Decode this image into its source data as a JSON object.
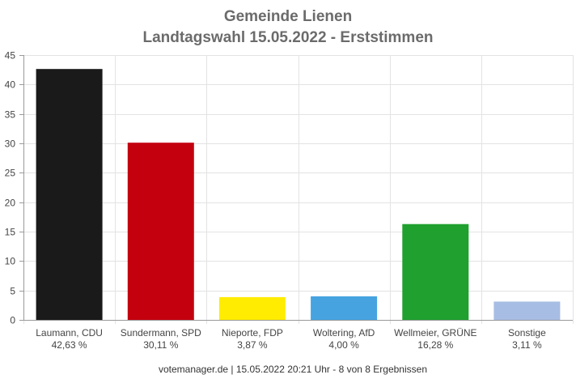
{
  "colors": {
    "grid": "#e3e3e3",
    "axis": "#9a9a9a",
    "title": "#6b6b6b"
  },
  "chart_data": {
    "type": "bar",
    "title": "Gemeinde Lienen",
    "subtitle": "Landtagswahl 15.05.2022  - Erststimmen",
    "categories": [
      "Laumann, CDU",
      "Sundermann, SPD",
      "Nieporte, FDP",
      "Woltering, AfD",
      "Wellmeier, GRÜNE",
      "Sonstige"
    ],
    "value_labels": [
      "42,63 %",
      "30,11 %",
      "3,87 %",
      "4,00 %",
      "16,28 %",
      "3,11 %"
    ],
    "values": [
      42.63,
      30.11,
      3.87,
      4.0,
      16.28,
      3.11
    ],
    "bar_colors": [
      "#1a1a1a",
      "#c4000f",
      "#ffec00",
      "#46a3e0",
      "#1fa02f",
      "#a8bde3"
    ],
    "ylim": [
      0,
      45
    ],
    "yticks": [
      "0",
      "5",
      "10",
      "15",
      "20",
      "25",
      "30",
      "35",
      "40",
      "45"
    ],
    "grid": true,
    "xlabel": "",
    "ylabel": ""
  },
  "footer": "votemanager.de | 15.05.2022 20:21 Uhr - 8 von 8 Ergebnissen"
}
